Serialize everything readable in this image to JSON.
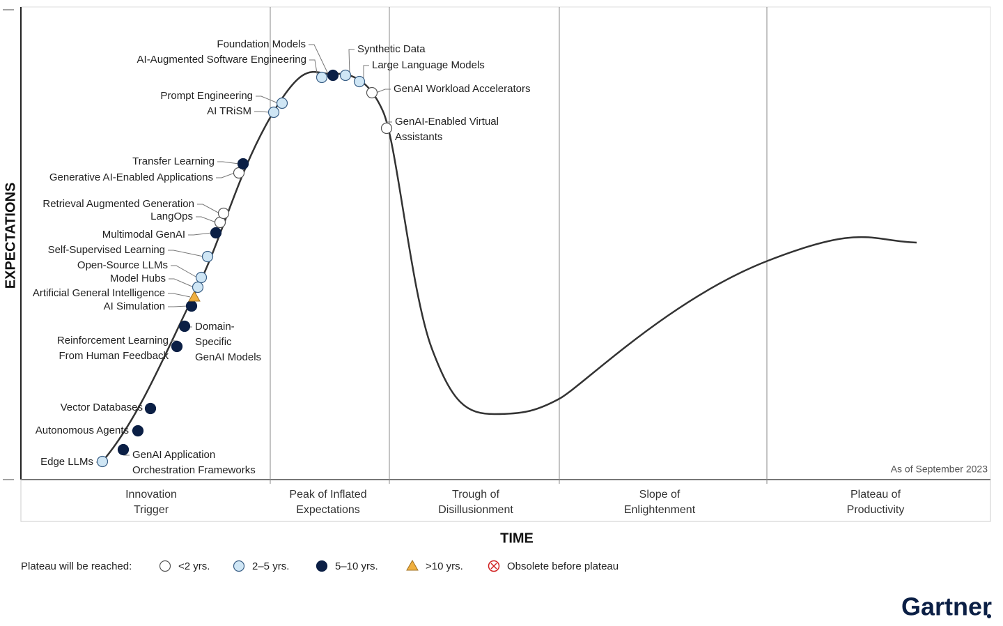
{
  "axis_labels": {
    "y": "EXPECTATIONS",
    "x": "TIME"
  },
  "phases": [
    [
      "Innovation",
      "Trigger"
    ],
    [
      "Peak of Inflated",
      "Expectations"
    ],
    [
      "Trough of",
      "Disillusionment"
    ],
    [
      "Slope of",
      "Enlightenment"
    ],
    [
      "Plateau of",
      "Productivity"
    ]
  ],
  "note": "As of September 2023",
  "legend": {
    "title": "Plateau will be reached:",
    "items": [
      "<2 yrs.",
      "2–5 yrs.",
      "5–10 yrs.",
      ">10 yrs.",
      "Obsolete before plateau"
    ]
  },
  "technologies": [
    {
      "label": [
        "Edge LLMs"
      ],
      "reach": "2–5 yrs."
    },
    {
      "label": [
        "GenAI Application",
        "Orchestration Frameworks"
      ],
      "reach": "5–10 yrs."
    },
    {
      "label": [
        "Autonomous Agents"
      ],
      "reach": "5–10 yrs."
    },
    {
      "label": [
        "Vector Databases"
      ],
      "reach": "5–10 yrs."
    },
    {
      "label": [
        "Reinforcement Learning",
        "From Human Feedback"
      ],
      "reach": "5–10 yrs."
    },
    {
      "label": [
        "Domain-",
        "Specific",
        "GenAI Models"
      ],
      "reach": "5–10 yrs."
    },
    {
      "label": [
        "AI Simulation"
      ],
      "reach": "5–10 yrs."
    },
    {
      "label": [
        "Artificial General Intelligence"
      ],
      "reach": ">10 yrs."
    },
    {
      "label": [
        "Model Hubs"
      ],
      "reach": "2–5 yrs."
    },
    {
      "label": [
        "Open-Source LLMs"
      ],
      "reach": "2–5 yrs."
    },
    {
      "label": [
        "Self-Supervised Learning"
      ],
      "reach": "2–5 yrs."
    },
    {
      "label": [
        "Multimodal GenAI"
      ],
      "reach": "5–10 yrs."
    },
    {
      "label": [
        "LangOps"
      ],
      "reach": "<2 yrs."
    },
    {
      "label": [
        "Retrieval Augmented Generation"
      ],
      "reach": "<2 yrs."
    },
    {
      "label": [
        "Generative AI-Enabled Applications"
      ],
      "reach": "<2 yrs."
    },
    {
      "label": [
        "Transfer Learning"
      ],
      "reach": "5–10 yrs."
    },
    {
      "label": [
        "AI TRiSM"
      ],
      "reach": "2–5 yrs."
    },
    {
      "label": [
        "Prompt Engineering"
      ],
      "reach": "2–5 yrs."
    },
    {
      "label": [
        "AI-Augmented Software Engineering"
      ],
      "reach": "2–5 yrs."
    },
    {
      "label": [
        "Foundation Models"
      ],
      "reach": "5–10 yrs."
    },
    {
      "label": [
        "Synthetic Data"
      ],
      "reach": "2–5 yrs."
    },
    {
      "label": [
        "Large Language Models"
      ],
      "reach": "2–5 yrs."
    },
    {
      "label": [
        "GenAI Workload Accelerators"
      ],
      "reach": "<2 yrs."
    },
    {
      "label": [
        "GenAI-Enabled Virtual",
        "Assistants"
      ],
      "reach": "<2 yrs."
    }
  ],
  "brand": "Gartner"
}
